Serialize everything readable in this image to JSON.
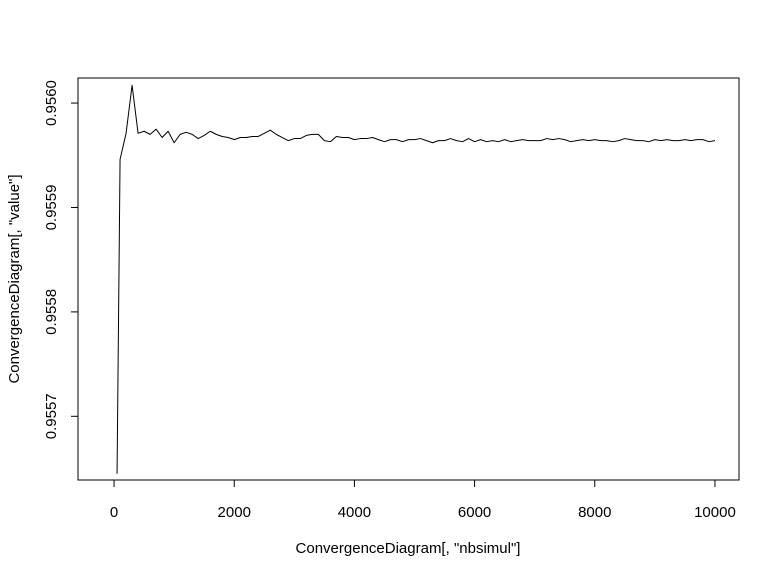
{
  "chart_data": {
    "type": "line",
    "title": "",
    "xlabel": "ConvergenceDiagram[, \"nbsimul\"]",
    "ylabel": "ConvergenceDiagram[, \"value\"]",
    "xlim": [
      -600,
      10400
    ],
    "ylim": [
      0.955639,
      0.956024
    ],
    "xticks": [
      0,
      2000,
      4000,
      6000,
      8000,
      10000
    ],
    "yticks": [
      0.9557,
      0.9558,
      0.9559,
      0.956
    ],
    "xtick_labels": [
      "0",
      "2000",
      "4000",
      "6000",
      "8000",
      "10000"
    ],
    "ytick_labels": [
      "0.9557",
      "0.9558",
      "0.9559",
      "0.9560"
    ],
    "grid": false,
    "legend": "none",
    "line_color": "#000000",
    "series": [
      {
        "x": [
          50,
          100,
          200,
          300,
          400,
          500,
          600,
          700,
          800,
          900,
          1000,
          1100,
          1200,
          1300,
          1400,
          1500,
          1600,
          1700,
          1800,
          1900,
          2000,
          2100,
          2200,
          2300,
          2400,
          2500,
          2600,
          2700,
          2800,
          2900,
          3000,
          3100,
          3200,
          3300,
          3400,
          3500,
          3600,
          3700,
          3800,
          3900,
          4000,
          4100,
          4200,
          4300,
          4400,
          4500,
          4600,
          4700,
          4800,
          4900,
          5000,
          5100,
          5200,
          5300,
          5400,
          5500,
          5600,
          5700,
          5800,
          5900,
          6000,
          6100,
          6200,
          6300,
          6400,
          6500,
          6600,
          6700,
          6800,
          6900,
          7000,
          7100,
          7200,
          7300,
          7400,
          7500,
          7600,
          7700,
          7800,
          7900,
          8000,
          8100,
          8200,
          8300,
          8400,
          8500,
          8600,
          8700,
          8800,
          8900,
          9000,
          9100,
          9200,
          9300,
          9400,
          9500,
          9600,
          9700,
          9800,
          9900,
          10000
        ],
        "values": [
          0.955645,
          0.955946,
          0.955971,
          0.956017,
          0.955971,
          0.955973,
          0.95597,
          0.955975,
          0.955967,
          0.955973,
          0.955962,
          0.95597,
          0.955972,
          0.95597,
          0.955966,
          0.955969,
          0.955973,
          0.95597,
          0.955968,
          0.955967,
          0.955965,
          0.955967,
          0.955967,
          0.955968,
          0.955968,
          0.955971,
          0.955974,
          0.95597,
          0.955967,
          0.955964,
          0.955966,
          0.955966,
          0.955969,
          0.95597,
          0.95597,
          0.955964,
          0.955963,
          0.955968,
          0.955967,
          0.955967,
          0.955965,
          0.955966,
          0.955966,
          0.955967,
          0.955965,
          0.955963,
          0.955965,
          0.955965,
          0.955963,
          0.955965,
          0.955965,
          0.955966,
          0.955964,
          0.955962,
          0.955964,
          0.955964,
          0.955966,
          0.955964,
          0.955963,
          0.955966,
          0.955963,
          0.955965,
          0.955963,
          0.955964,
          0.955963,
          0.955965,
          0.955963,
          0.955964,
          0.955965,
          0.955964,
          0.955964,
          0.955964,
          0.955966,
          0.955965,
          0.955966,
          0.955965,
          0.955963,
          0.955964,
          0.955965,
          0.955964,
          0.955965,
          0.955964,
          0.955964,
          0.955963,
          0.955964,
          0.955966,
          0.955965,
          0.955964,
          0.955964,
          0.955963,
          0.955965,
          0.955964,
          0.955965,
          0.955964,
          0.955964,
          0.955965,
          0.955964,
          0.955965,
          0.955965,
          0.955963,
          0.955964
        ]
      }
    ]
  }
}
